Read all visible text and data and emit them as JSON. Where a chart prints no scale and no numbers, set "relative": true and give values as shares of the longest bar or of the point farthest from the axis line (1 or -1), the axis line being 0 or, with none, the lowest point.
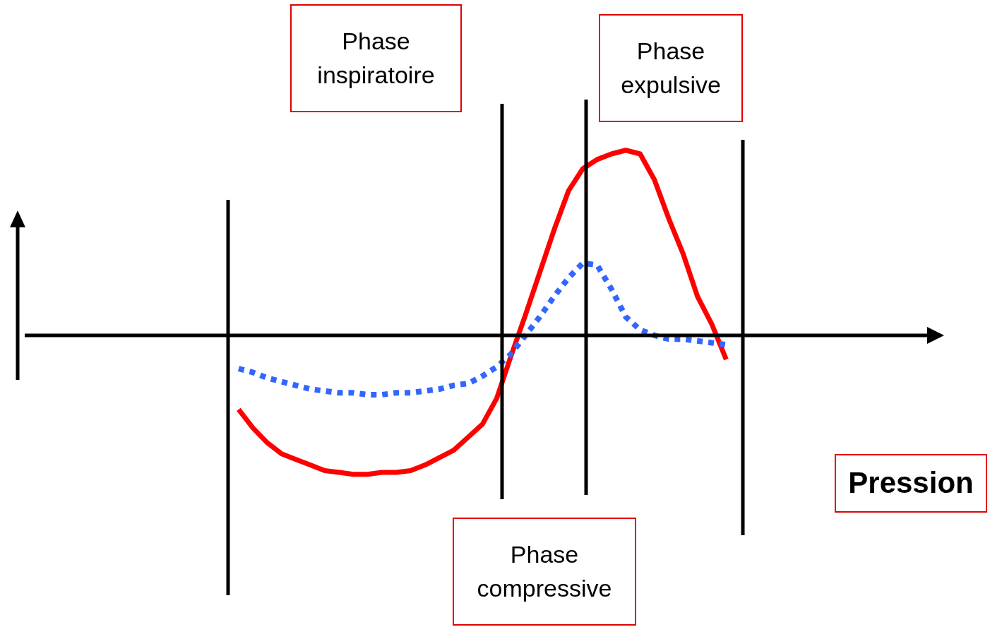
{
  "chart_data": {
    "type": "line",
    "relative": true,
    "categories": [
      null,
      null,
      null,
      null,
      null,
      null,
      null,
      null,
      null,
      null,
      null,
      null,
      null,
      null,
      null,
      null,
      null,
      null,
      null,
      null,
      null,
      null,
      null,
      null,
      null,
      null,
      null,
      null,
      null,
      null,
      null,
      null,
      null,
      null,
      null,
      null,
      null,
      null,
      null,
      null,
      null,
      null,
      null,
      null,
      null,
      null,
      null,
      null,
      null,
      null,
      null,
      null,
      null,
      null,
      null,
      null,
      null,
      null,
      null,
      null,
      null,
      null,
      null,
      null,
      null,
      null
    ],
    "annotations": [
      "Phase inspiratoire",
      "Phase expulsive",
      "Phase compressive",
      "Pression"
    ],
    "series": [
      {
        "color": "#ff0000",
        "line_style": "solid",
        "values": [
          null,
          null,
          null,
          null,
          null,
          null,
          null,
          null,
          null,
          null,
          null,
          null,
          null,
          null,
          null,
          null,
          -0.4,
          -0.5,
          -0.58,
          -0.64,
          -0.67,
          -0.7,
          -0.73,
          -0.74,
          -0.75,
          -0.75,
          -0.74,
          -0.74,
          -0.73,
          -0.7,
          -0.66,
          -0.62,
          -0.55,
          -0.48,
          -0.34,
          -0.11,
          0.11,
          0.34,
          0.57,
          0.78,
          0.9,
          0.95,
          0.98,
          1,
          0.98,
          0.84,
          0.63,
          0.44,
          0.21,
          0.06,
          -0.13,
          null,
          null,
          null,
          null,
          null,
          null,
          null,
          null,
          null,
          null,
          null,
          null,
          null,
          null,
          null
        ]
      },
      {
        "color": "#3366ff",
        "line_style": "dotted",
        "values": [
          null,
          null,
          null,
          null,
          null,
          null,
          null,
          null,
          null,
          null,
          null,
          null,
          null,
          null,
          null,
          null,
          -0.18,
          -0.2,
          -0.23,
          -0.25,
          -0.27,
          -0.29,
          -0.3,
          -0.31,
          -0.31,
          -0.32,
          -0.32,
          -0.31,
          -0.31,
          -0.3,
          -0.29,
          -0.27,
          -0.26,
          -0.22,
          -0.17,
          -0.1,
          0,
          0.1,
          0.21,
          0.31,
          0.39,
          0.38,
          0.25,
          0.1,
          0.03,
          0,
          -0.02,
          -0.02,
          -0.03,
          -0.04,
          -0.05,
          null,
          null,
          null,
          null,
          null,
          null,
          null,
          null,
          null,
          null,
          null,
          null,
          null,
          null,
          null
        ]
      }
    ]
  }
}
